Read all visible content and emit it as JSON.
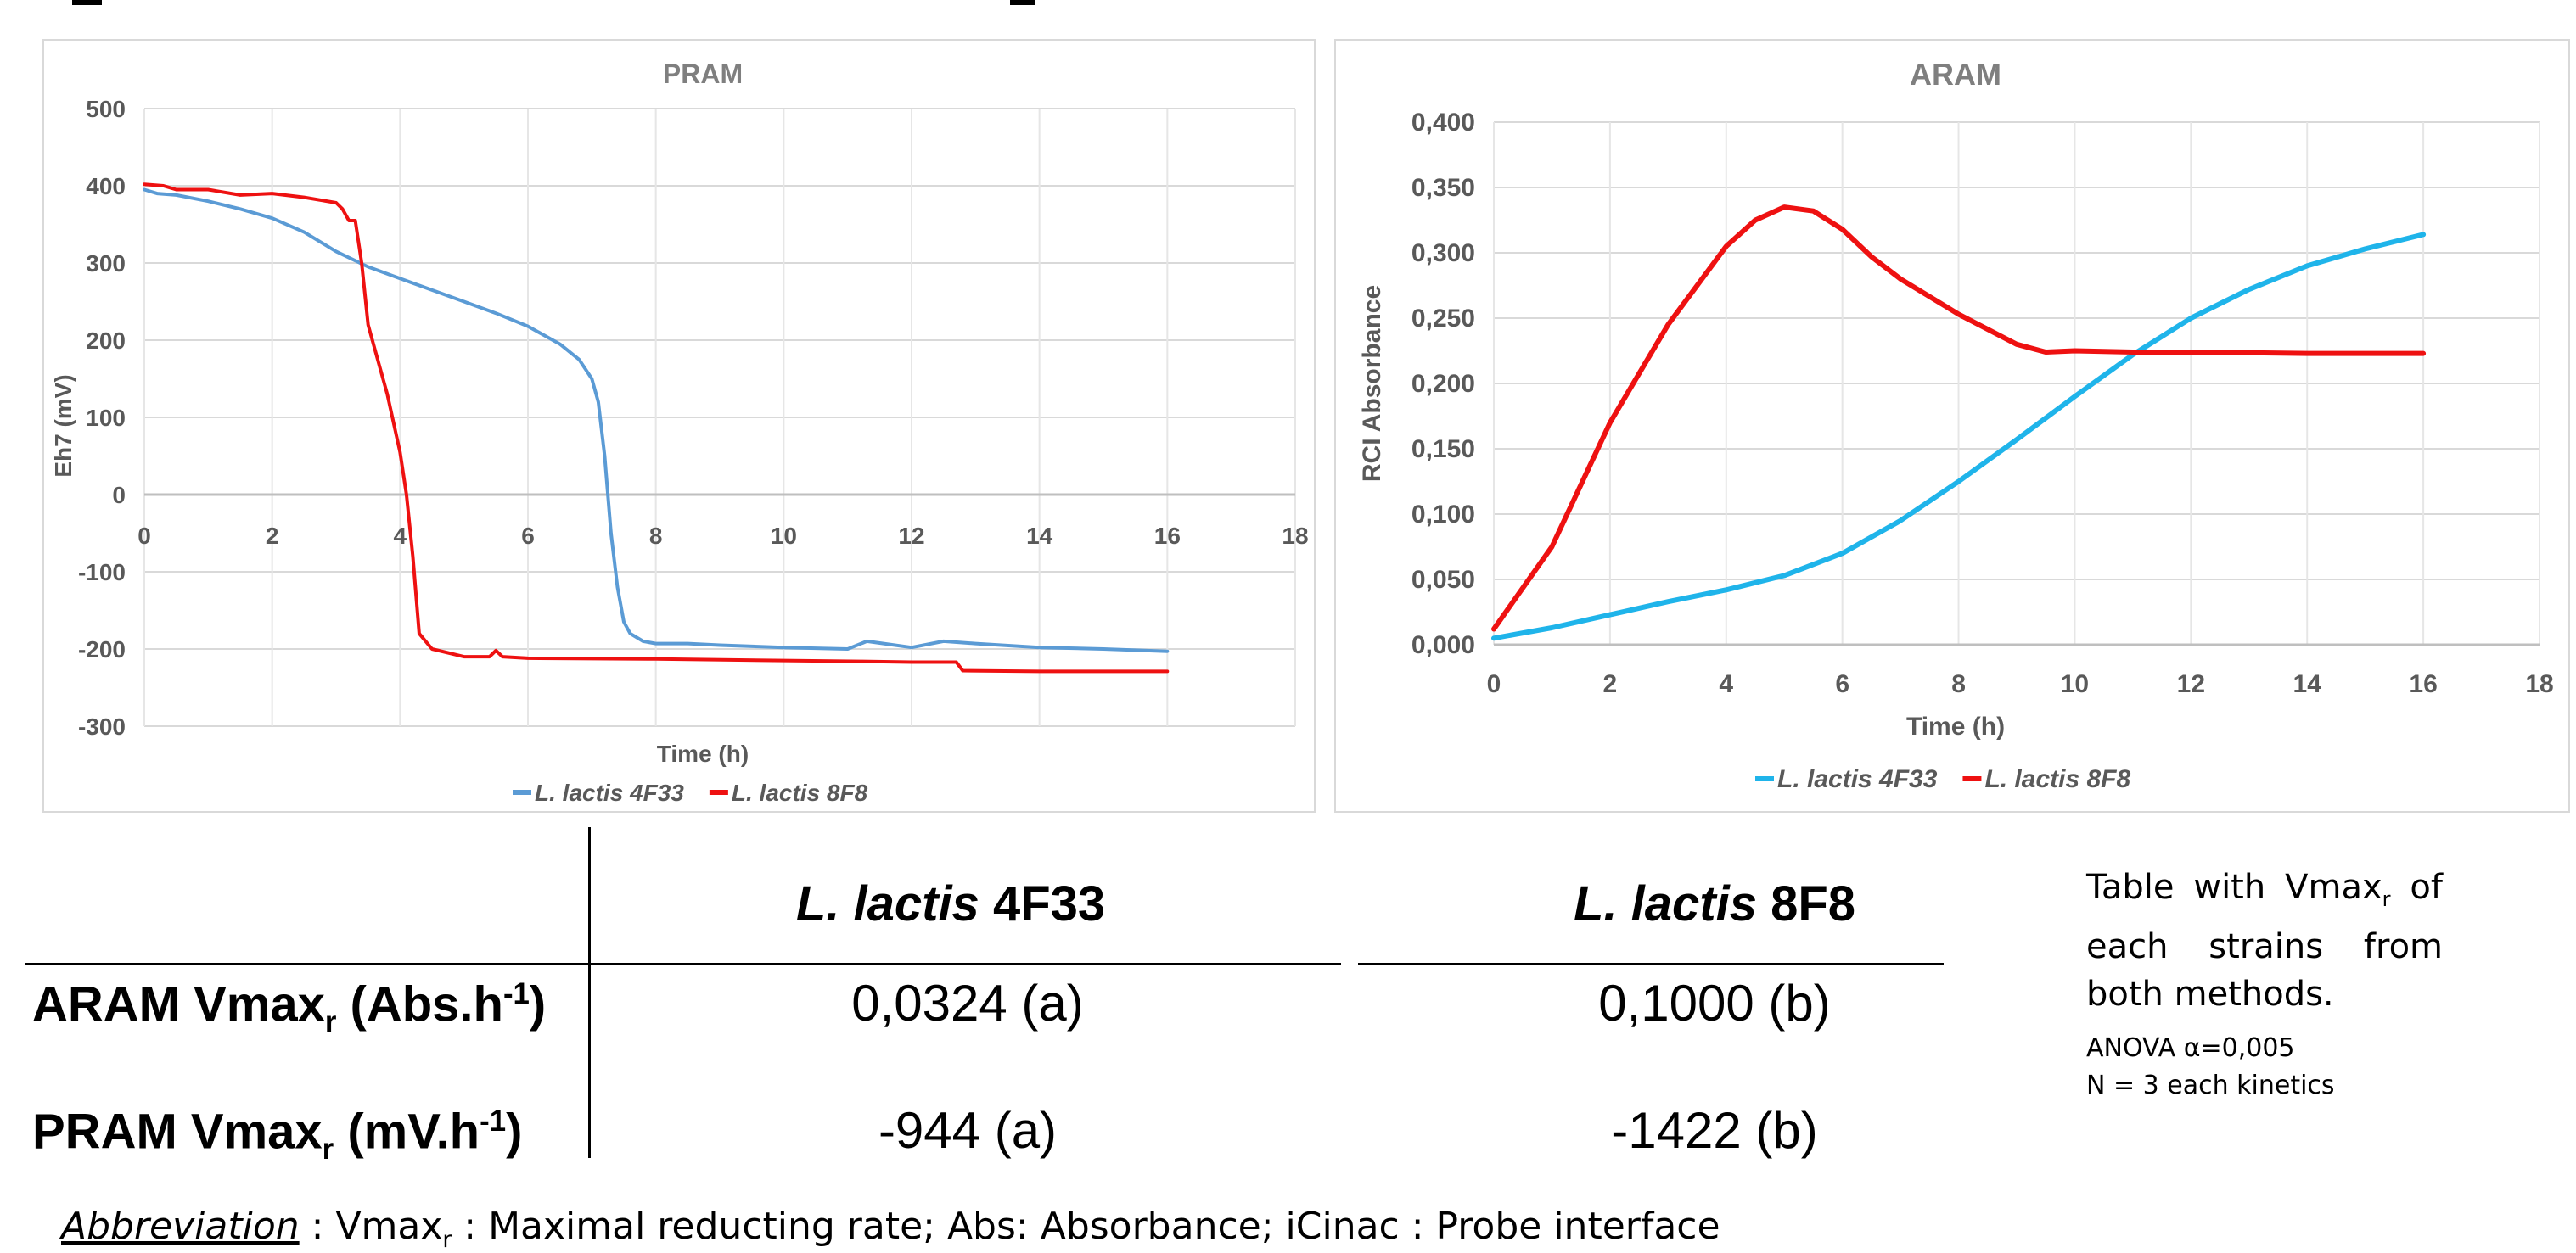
{
  "chart_data": [
    {
      "type": "line",
      "title": "PRAM",
      "xlabel": "Time (h)",
      "ylabel": "Eh7 (mV)",
      "xlim": [
        0,
        18
      ],
      "ylim": [
        -300,
        500
      ],
      "xticks": [
        0,
        2,
        4,
        6,
        8,
        10,
        12,
        14,
        16,
        18
      ],
      "yticks": [
        -300,
        -200,
        -100,
        0,
        100,
        200,
        300,
        400,
        500
      ],
      "grid": true,
      "legend_position": "bottom",
      "series": [
        {
          "name": "L. lactis 4F33",
          "color": "#5b9bd5",
          "x": [
            0,
            0.2,
            0.5,
            1,
            1.5,
            2,
            2.5,
            3,
            3.5,
            4,
            4.5,
            5,
            5.5,
            6,
            6.5,
            6.8,
            7,
            7.1,
            7.2,
            7.3,
            7.4,
            7.5,
            7.6,
            7.8,
            8,
            8.5,
            9,
            10,
            11,
            11.3,
            12,
            12.5,
            13,
            14,
            15,
            16
          ],
          "y": [
            395,
            390,
            388,
            380,
            370,
            358,
            340,
            315,
            295,
            280,
            265,
            250,
            235,
            218,
            195,
            175,
            150,
            120,
            50,
            -50,
            -120,
            -165,
            -180,
            -190,
            -193,
            -193,
            -195,
            -198,
            -200,
            -190,
            -198,
            -190,
            -193,
            -198,
            -200,
            -203
          ]
        },
        {
          "name": "L. lactis 8F8",
          "color": "#ee1111",
          "x": [
            0,
            0.3,
            0.5,
            1,
            1.5,
            2,
            2.5,
            3,
            3.1,
            3.2,
            3.3,
            3.4,
            3.5,
            3.6,
            3.8,
            4,
            4.1,
            4.2,
            4.3,
            4.5,
            5,
            5.4,
            5.5,
            5.6,
            6,
            8,
            10,
            11.2,
            12,
            12.7,
            12.8,
            14,
            16
          ],
          "y": [
            402,
            400,
            395,
            395,
            388,
            390,
            385,
            378,
            370,
            355,
            355,
            300,
            220,
            190,
            130,
            55,
            0,
            -80,
            -180,
            -200,
            -210,
            -210,
            -202,
            -210,
            -212,
            -213,
            -215,
            -216,
            -217,
            -217,
            -228,
            -229,
            -229
          ]
        }
      ]
    },
    {
      "type": "line",
      "title": "ARAM",
      "xlabel": "Time (h)",
      "ylabel": "RCI Absorbance",
      "xlim": [
        0,
        18
      ],
      "ylim": [
        0,
        0.4
      ],
      "xticks": [
        0,
        2,
        4,
        6,
        8,
        10,
        12,
        14,
        16,
        18
      ],
      "yticks": [
        "0,000",
        "0,050",
        "0,100",
        "0,150",
        "0,200",
        "0,250",
        "0,300",
        "0,350",
        "0,400"
      ],
      "grid": true,
      "legend_position": "bottom",
      "series": [
        {
          "name": "L. lactis 4F33",
          "color": "#1fb4ea",
          "x": [
            0,
            1,
            2,
            3,
            4,
            5,
            6,
            7,
            8,
            9,
            10,
            11,
            12,
            13,
            14,
            15,
            16
          ],
          "y": [
            0.005,
            0.013,
            0.023,
            0.033,
            0.042,
            0.053,
            0.07,
            0.095,
            0.125,
            0.157,
            0.19,
            0.222,
            0.25,
            0.272,
            0.29,
            0.303,
            0.314
          ]
        },
        {
          "name": "L. lactis 8F8",
          "color": "#ee1111",
          "x": [
            0,
            1,
            2,
            3,
            4,
            4.5,
            5,
            5.5,
            6,
            6.5,
            7,
            8,
            9,
            9.5,
            10,
            11,
            12,
            14,
            16
          ],
          "y": [
            0.012,
            0.075,
            0.17,
            0.245,
            0.305,
            0.325,
            0.335,
            0.332,
            0.318,
            0.297,
            0.28,
            0.253,
            0.23,
            0.224,
            0.225,
            0.224,
            0.224,
            0.223,
            0.223
          ]
        }
      ]
    }
  ],
  "table": {
    "col_headers": [
      {
        "italic": "L. lactis",
        "plain": " 4F33"
      },
      {
        "italic": "L. lactis",
        "plain": " 8F8"
      }
    ],
    "rows": [
      {
        "label_pre": "ARAM Vmax",
        "label_sub": "r",
        "label_mid": " (Abs.h",
        "label_sup": "-1",
        "label_post": ")",
        "values": [
          "0,0324 (a)",
          "0,1000 (b)"
        ]
      },
      {
        "label_pre": "PRAM Vmax",
        "label_sub": "r",
        "label_mid": " (mV.h",
        "label_sup": "-1",
        "label_post": ")",
        "values": [
          "-944 (a)",
          "-1422 (b)"
        ]
      }
    ]
  },
  "notes": {
    "main_pre": "Table with Vmax",
    "main_sub": "r",
    "main_post": " of each strains from both methods.",
    "anova": "ANOVA α=0,005",
    "n": "N = 3 each kinetics"
  },
  "abbreviation": {
    "label": "Abbreviation",
    "text_a": " : Vmax",
    "sub": "r",
    "text_b": " : Maximal reducting rate; Abs: Absorbance; iCinac : Probe interface"
  }
}
